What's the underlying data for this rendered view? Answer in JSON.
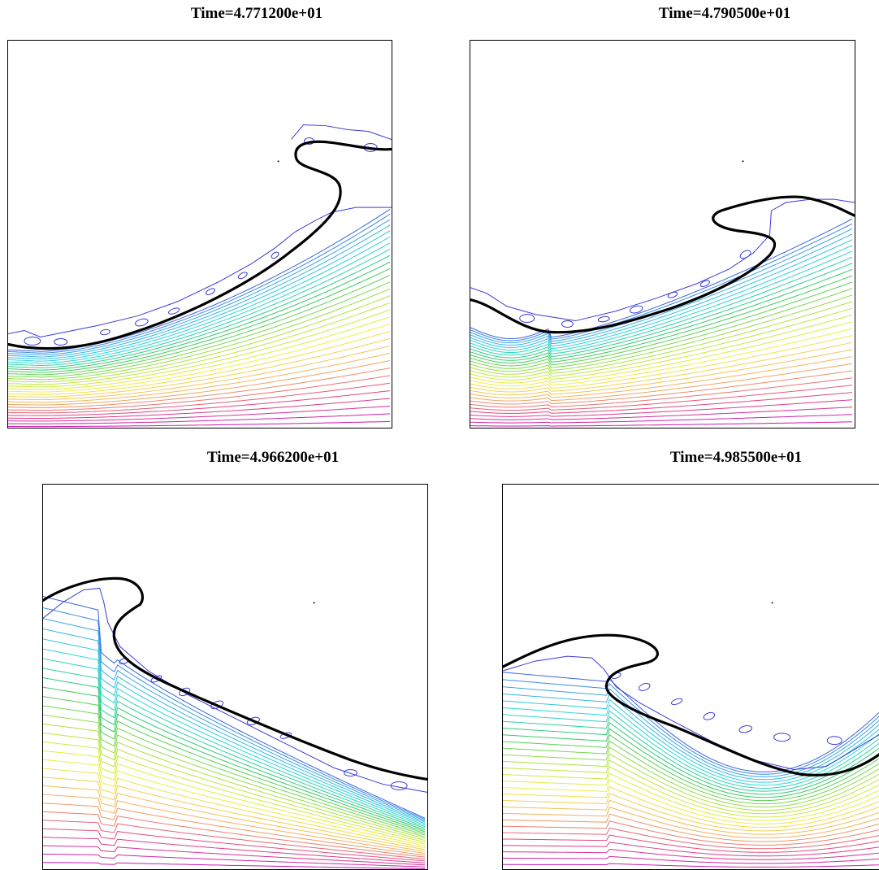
{
  "figure": {
    "panels": [
      {
        "id": "p1",
        "title": "Time=4.771200e+01"
      },
      {
        "id": "p2",
        "title": "Time=4.790500e+01"
      },
      {
        "id": "p3",
        "title": "Time=4.966200e+01"
      },
      {
        "id": "p4",
        "title": "Time=4.985500e+01"
      }
    ],
    "colors": {
      "interface": "#000000",
      "contour_ramp": [
        "#3a3ad8",
        "#3aa0e8",
        "#2ad8d8",
        "#30c860",
        "#a8e040",
        "#f0f040",
        "#f0b060",
        "#e04080",
        "#c010c0"
      ]
    }
  }
}
